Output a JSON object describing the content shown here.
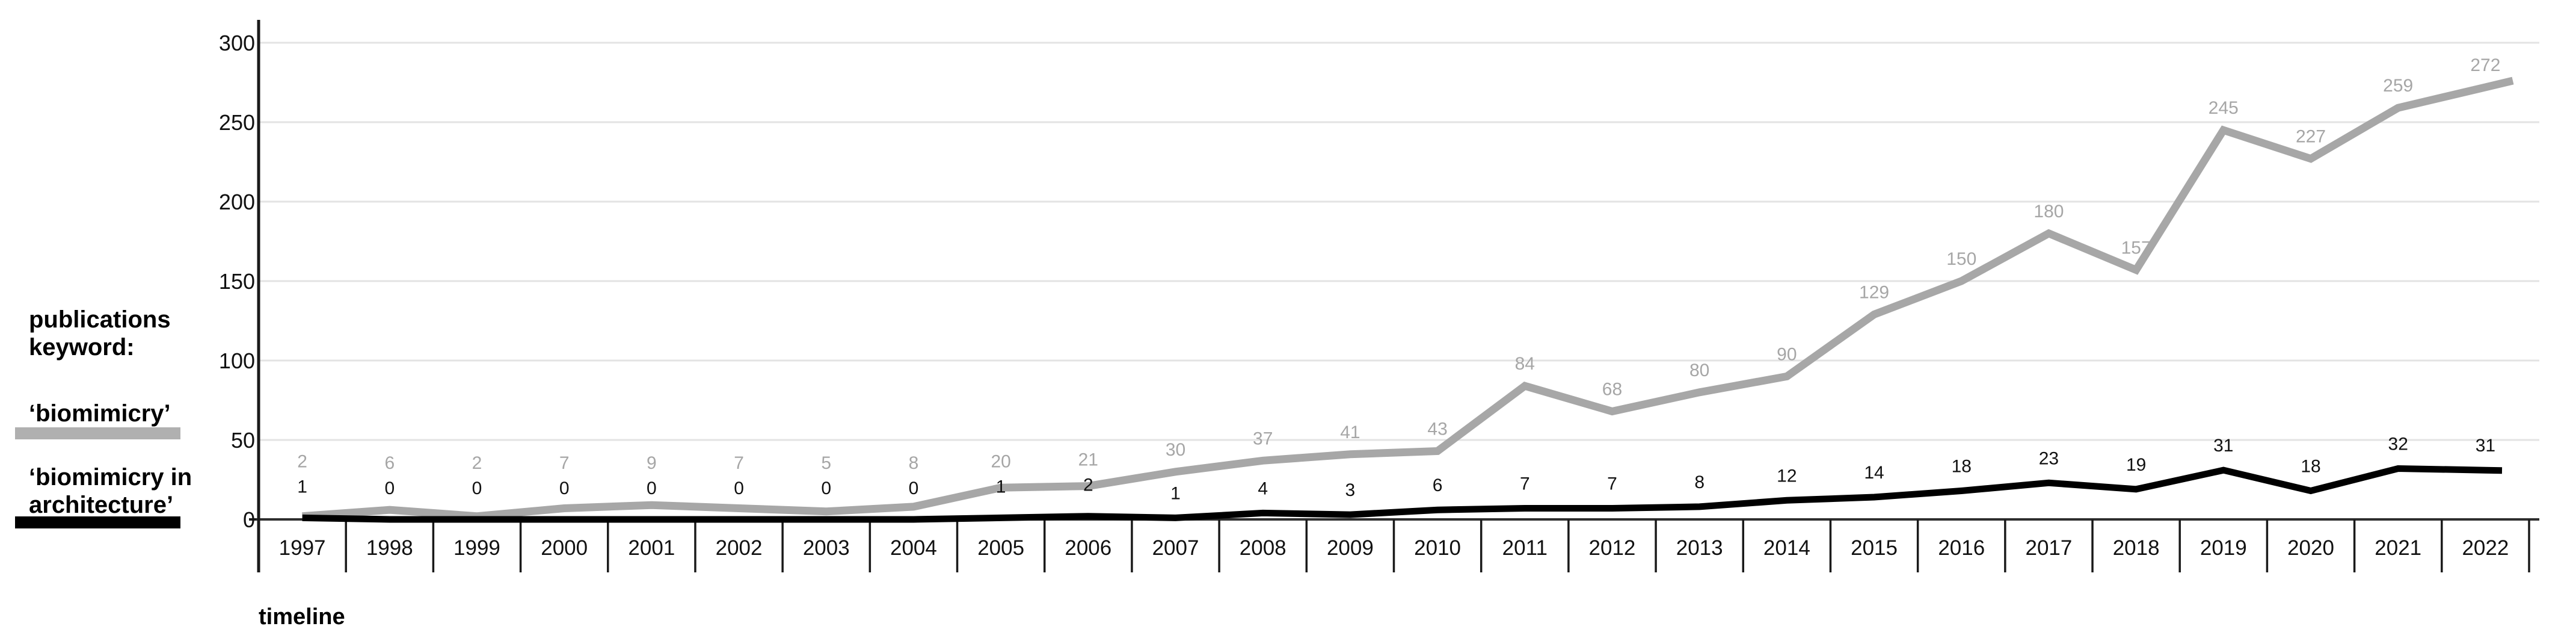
{
  "legend": {
    "title_lines": [
      "publications",
      "keyword:"
    ],
    "items": [
      {
        "label_lines": [
          "‘biomimicry’"
        ],
        "swatch_color": "#b0b0b0"
      },
      {
        "label_lines": [
          "‘biomimicry in",
          "architecture’"
        ],
        "swatch_color": "#000000"
      }
    ]
  },
  "chart_data": {
    "type": "line",
    "x": [
      1997,
      1998,
      1999,
      2000,
      2001,
      2002,
      2003,
      2004,
      2005,
      2006,
      2007,
      2008,
      2009,
      2010,
      2011,
      2012,
      2013,
      2014,
      2015,
      2016,
      2017,
      2018,
      2019,
      2020,
      2021,
      2022
    ],
    "series": [
      {
        "name": "‘biomimicry’",
        "color": "#a7a7a7",
        "label_color": "#a6a6a6",
        "line_width": 13,
        "values": [
          2,
          6,
          2,
          7,
          9,
          7,
          5,
          8,
          20,
          21,
          30,
          37,
          41,
          43,
          84,
          68,
          80,
          90,
          129,
          150,
          180,
          157,
          245,
          227,
          259,
          272
        ]
      },
      {
        "name": "‘biomimicry in architecture’",
        "color": "#000000",
        "label_color": "#111111",
        "line_width": 11,
        "values": [
          1,
          0,
          0,
          0,
          0,
          0,
          0,
          0,
          1,
          2,
          1,
          4,
          3,
          6,
          7,
          7,
          8,
          12,
          14,
          18,
          23,
          19,
          31,
          18,
          32,
          31
        ]
      }
    ],
    "xlabel": "timeline",
    "ylabel": "",
    "ylim": [
      0,
      300
    ],
    "yticks": [
      0,
      50,
      100,
      150,
      200,
      250,
      300
    ],
    "grid": true,
    "legend_position": "left",
    "colors": {
      "grid": "#e3e3e3",
      "axis": "#1a1a1a",
      "x_axis": "#2e2e2e",
      "background": "#ffffff"
    }
  }
}
